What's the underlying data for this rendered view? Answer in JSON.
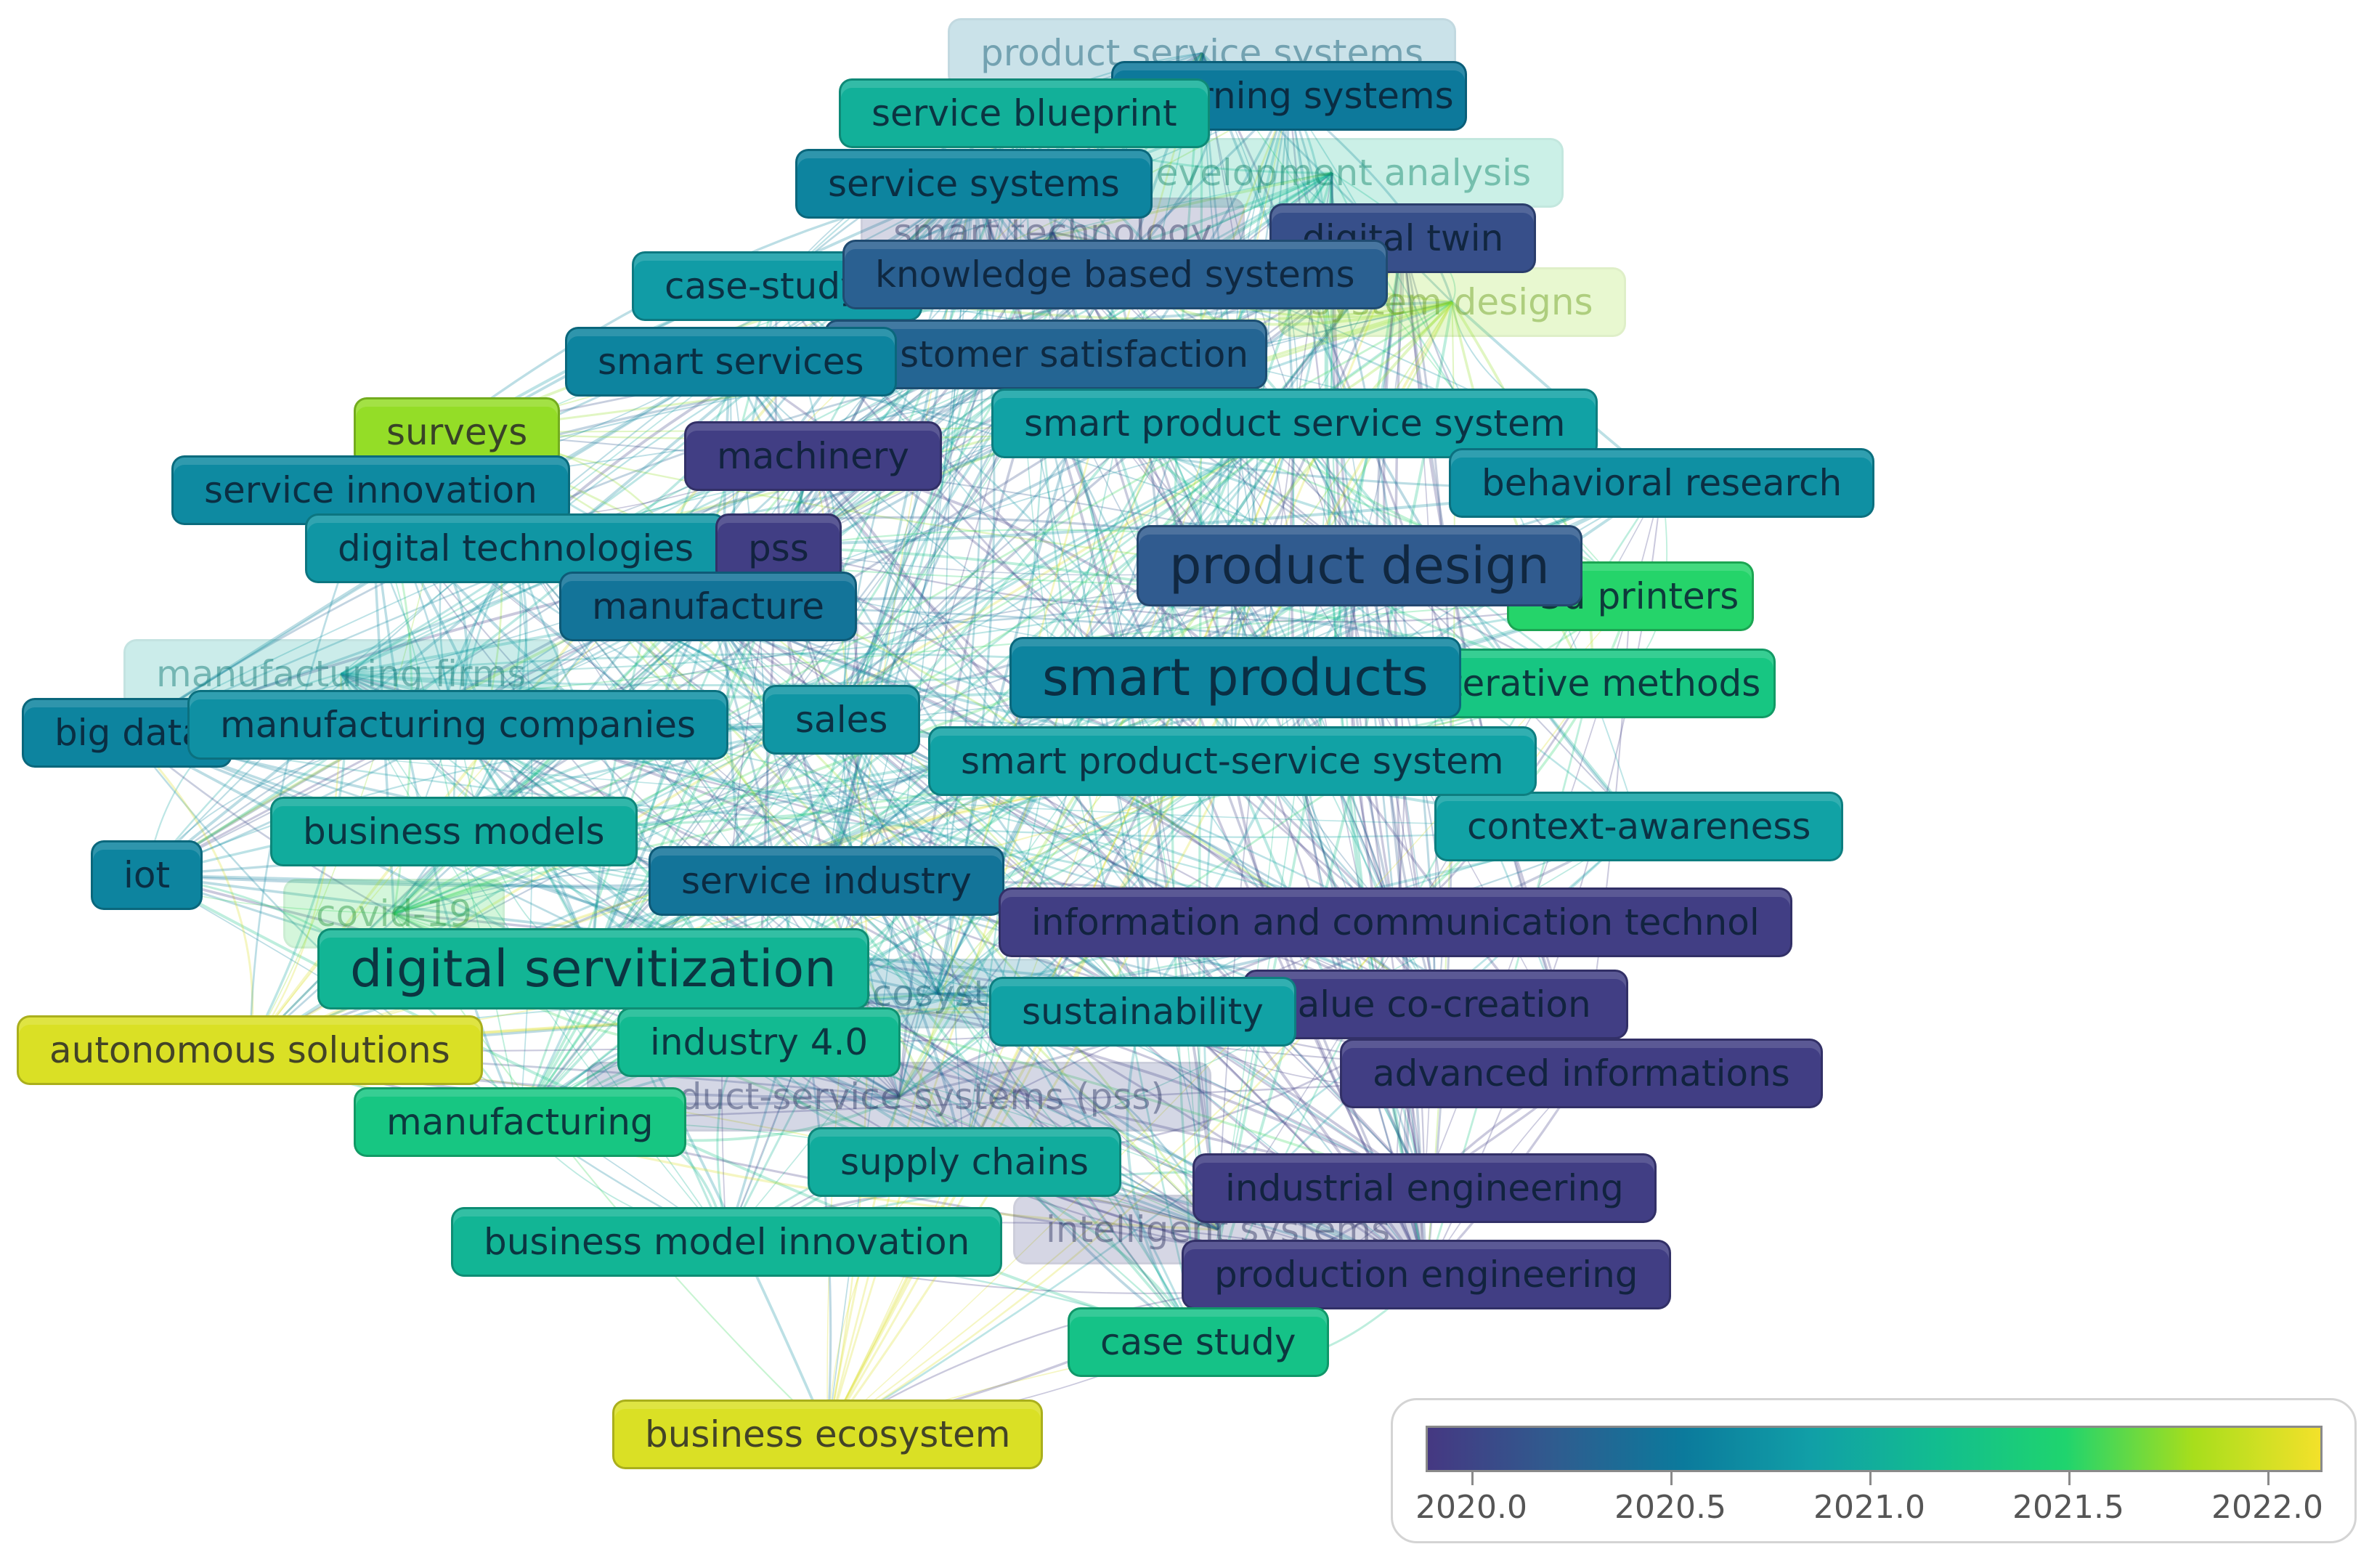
{
  "colorbar": {
    "ticks": [
      "2020.0",
      "2020.5",
      "2021.0",
      "2021.5",
      "2022.0"
    ],
    "min": 2020.0,
    "max": 2022.15,
    "stops": [
      "#453882",
      "#2f5c8f",
      "#0b7a9c",
      "#119fa7",
      "#12bd8f",
      "#1fd46e",
      "#a7de1c",
      "#f3e12a"
    ]
  },
  "keywords": [
    {
      "label": "product service systems",
      "year": 2020.6,
      "faded": true
    },
    {
      "label": "learning systems",
      "year": 2020.6,
      "faded": false
    },
    {
      "label": "service blueprint",
      "year": 2021.1,
      "faded": false
    },
    {
      "label": "development analysis",
      "year": 2021.2,
      "faded": true
    },
    {
      "label": "service systems",
      "year": 2020.7,
      "faded": false
    },
    {
      "label": "smart technology",
      "year": 2020.1,
      "faded": true
    },
    {
      "label": "digital twin",
      "year": 2020.2,
      "faded": false
    },
    {
      "label": "case-study",
      "year": 2020.9,
      "faded": false
    },
    {
      "label": "knowledge based systems",
      "year": 2020.35,
      "faded": false
    },
    {
      "label": "system designs",
      "year": 2021.8,
      "faded": true
    },
    {
      "label": "customer satisfaction",
      "year": 2020.4,
      "faded": false
    },
    {
      "label": "smart services",
      "year": 2020.7,
      "faded": false
    },
    {
      "label": "smart product service system",
      "year": 2020.95,
      "faded": false
    },
    {
      "label": "surveys",
      "year": 2021.8,
      "faded": false
    },
    {
      "label": "machinery",
      "year": 2020.05,
      "faded": false
    },
    {
      "label": "service innovation",
      "year": 2020.75,
      "faded": false
    },
    {
      "label": "behavioral research",
      "year": 2020.8,
      "faded": false
    },
    {
      "label": "digital technologies",
      "year": 2020.85,
      "faded": false
    },
    {
      "label": "pss",
      "year": 2020.05,
      "faded": false
    },
    {
      "label": "product design",
      "year": 2020.3,
      "faded": false
    },
    {
      "label": "manufacture",
      "year": 2020.55,
      "faded": false
    },
    {
      "label": "3d printers",
      "year": 2021.55,
      "faded": false
    },
    {
      "label": "manufacturing firms",
      "year": 2021.0,
      "faded": true
    },
    {
      "label": "smart products",
      "year": 2020.7,
      "faded": false
    },
    {
      "label": "iterative methods",
      "year": 2021.35,
      "faded": false
    },
    {
      "label": "big data",
      "year": 2020.7,
      "faded": false
    },
    {
      "label": "manufacturing companies",
      "year": 2020.8,
      "faded": false
    },
    {
      "label": "sales",
      "year": 2020.85,
      "faded": false
    },
    {
      "label": "smart product-service system",
      "year": 2020.95,
      "faded": false
    },
    {
      "label": "business models",
      "year": 2021.05,
      "faded": false
    },
    {
      "label": "context-awareness",
      "year": 2020.95,
      "faded": false
    },
    {
      "label": "iot",
      "year": 2020.7,
      "faded": false
    },
    {
      "label": "service industry",
      "year": 2020.55,
      "faded": false
    },
    {
      "label": "covid-19",
      "year": 2021.6,
      "faded": true
    },
    {
      "label": "information and communication technol",
      "year": 2020.05,
      "faded": false
    },
    {
      "label": "digital servitization",
      "year": 2021.15,
      "faded": false
    },
    {
      "label": "ecosystem",
      "year": 2020.6,
      "faded": true
    },
    {
      "label": "value co-creation",
      "year": 2020.05,
      "faded": false
    },
    {
      "label": "sustainability",
      "year": 2020.95,
      "faded": false
    },
    {
      "label": "industry 4.0",
      "year": 2021.2,
      "faded": false
    },
    {
      "label": "autonomous solutions",
      "year": 2022.05,
      "faded": false
    },
    {
      "label": "advanced informations",
      "year": 2020.05,
      "faded": false
    },
    {
      "label": "product-service systems (pss)",
      "year": 2020.15,
      "faded": true
    },
    {
      "label": "manufacturing",
      "year": 2021.35,
      "faded": false
    },
    {
      "label": "supply chains",
      "year": 2021.05,
      "faded": false
    },
    {
      "label": "industrial engineering",
      "year": 2020.05,
      "faded": false
    },
    {
      "label": "business model innovation",
      "year": 2021.15,
      "faded": false
    },
    {
      "label": "intelligent systems",
      "year": 2020.1,
      "faded": true
    },
    {
      "label": "production engineering",
      "year": 2020.05,
      "faded": false
    },
    {
      "label": "case study",
      "year": 2021.3,
      "faded": false
    },
    {
      "label": "business ecosystem",
      "year": 2022.05,
      "faded": false
    }
  ]
}
